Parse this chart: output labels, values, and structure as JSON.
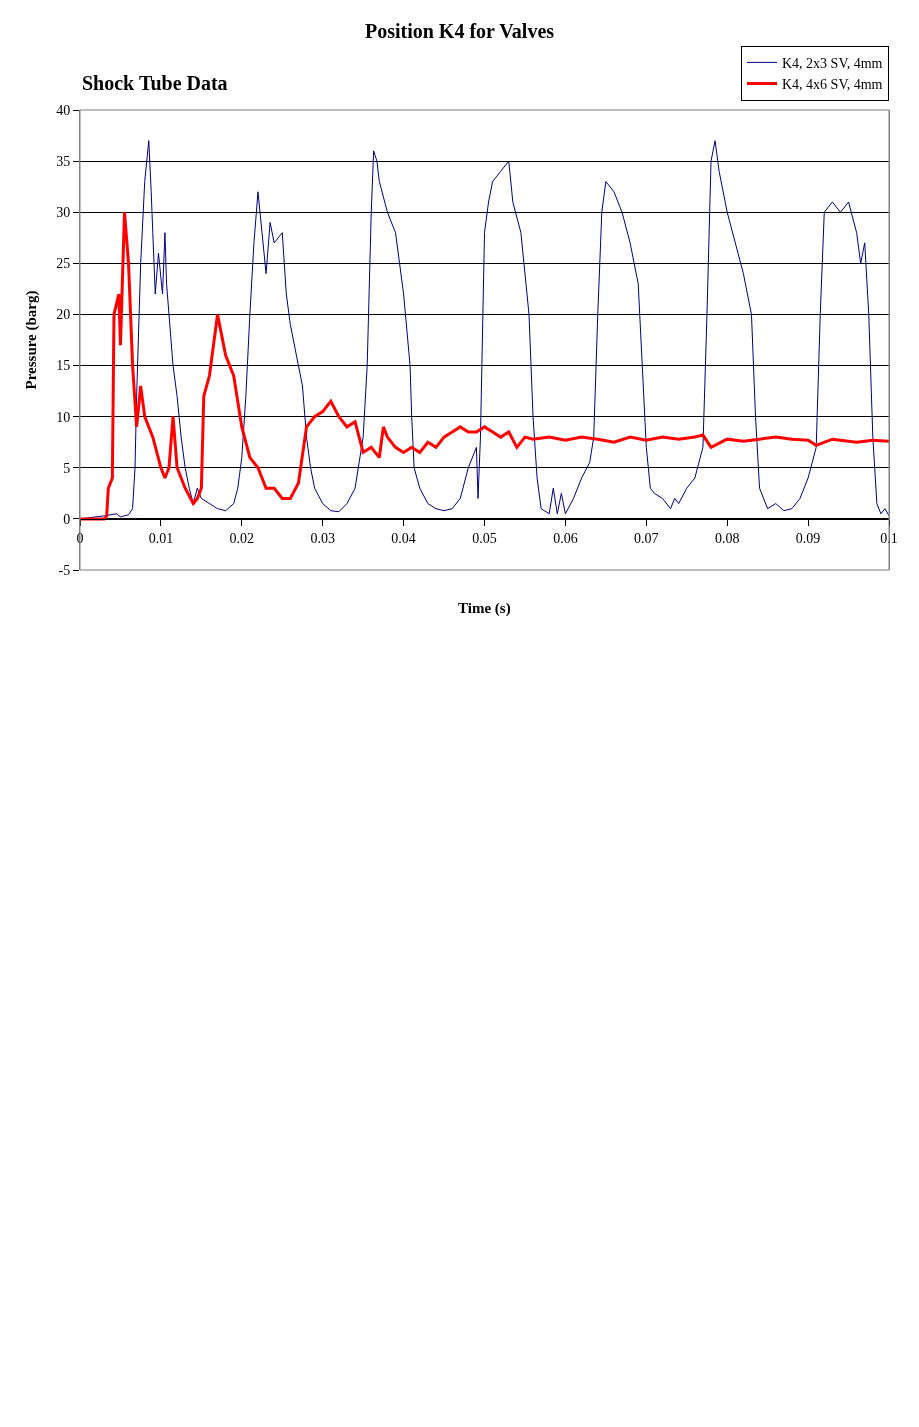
{
  "chart_data": {
    "type": "line",
    "title": "Position K4 for Valves",
    "subtitle": "Shock Tube Data",
    "xlabel": "Time (s)",
    "ylabel": "Pressure (barg)",
    "xlim": [
      0,
      0.1
    ],
    "xticks": [
      0,
      0.01,
      0.02,
      0.03,
      0.04,
      0.05,
      0.06,
      0.07,
      0.08,
      0.09,
      0.1
    ],
    "ylim": [
      -5,
      40
    ],
    "yticks": [
      -5,
      0,
      5,
      10,
      15,
      20,
      25,
      30,
      35,
      40
    ],
    "grid": "y",
    "legend": "top right",
    "series": [
      {
        "name": "K4, 2x3 SV, 4mm",
        "color": "#000080",
        "x": [
          0,
          0.003,
          0.0045,
          0.005,
          0.006,
          0.0065,
          0.0068,
          0.007,
          0.0075,
          0.008,
          0.0085,
          0.0088,
          0.009,
          0.0093,
          0.0097,
          0.0102,
          0.0105,
          0.0107,
          0.011,
          0.0115,
          0.012,
          0.0125,
          0.013,
          0.0135,
          0.014,
          0.0145,
          0.015,
          0.016,
          0.017,
          0.018,
          0.019,
          0.0195,
          0.02,
          0.0205,
          0.021,
          0.0215,
          0.022,
          0.0225,
          0.023,
          0.0235,
          0.024,
          0.025,
          0.0255,
          0.026,
          0.027,
          0.0275,
          0.028,
          0.0285,
          0.029,
          0.03,
          0.031,
          0.032,
          0.033,
          0.034,
          0.035,
          0.0355,
          0.036,
          0.0363,
          0.0367,
          0.037,
          0.038,
          0.039,
          0.04,
          0.0408,
          0.041,
          0.0413,
          0.042,
          0.043,
          0.044,
          0.045,
          0.046,
          0.047,
          0.048,
          0.049,
          0.0492,
          0.0495,
          0.0498,
          0.05,
          0.0505,
          0.051,
          0.052,
          0.053,
          0.0535,
          0.0545,
          0.0555,
          0.056,
          0.0565,
          0.057,
          0.058,
          0.0585,
          0.059,
          0.0595,
          0.06,
          0.061,
          0.062,
          0.063,
          0.0635,
          0.064,
          0.0645,
          0.065,
          0.066,
          0.067,
          0.068,
          0.069,
          0.0695,
          0.07,
          0.0705,
          0.071,
          0.072,
          0.073,
          0.0735,
          0.074,
          0.075,
          0.076,
          0.077,
          0.0775,
          0.078,
          0.0785,
          0.079,
          0.08,
          0.081,
          0.082,
          0.083,
          0.0835,
          0.084,
          0.085,
          0.086,
          0.087,
          0.088,
          0.089,
          0.09,
          0.091,
          0.0915,
          0.092,
          0.093,
          0.094,
          0.095,
          0.096,
          0.0965,
          0.097,
          0.0975,
          0.098,
          0.0985,
          0.099,
          0.0995,
          0.1
        ],
        "values": [
          0,
          0.3,
          0.5,
          0.2,
          0.4,
          1,
          5,
          12,
          25,
          33,
          37,
          32,
          28,
          22,
          26,
          22,
          28,
          23,
          20,
          15,
          12,
          8,
          5,
          3,
          1.5,
          3,
          2,
          1.5,
          1,
          0.8,
          1.5,
          3,
          6,
          12,
          20,
          27,
          32,
          28,
          24,
          29,
          27,
          28,
          22,
          19,
          15,
          13,
          8,
          5,
          3,
          1.5,
          0.8,
          0.7,
          1.5,
          3,
          8,
          15,
          30,
          36,
          35,
          33,
          30,
          28,
          22,
          15,
          10,
          5,
          3,
          1.5,
          1,
          0.8,
          1,
          2,
          5,
          7,
          2,
          8,
          20,
          28,
          31,
          33,
          34,
          35,
          31,
          28,
          20,
          10,
          4,
          1,
          0.5,
          3,
          0.5,
          2.5,
          0.5,
          2,
          4,
          5.5,
          8,
          20,
          30,
          33,
          32,
          30,
          27,
          23,
          15,
          7,
          3,
          2.5,
          2,
          1,
          2,
          1.5,
          3,
          4,
          7,
          20,
          35,
          37,
          34,
          30,
          27,
          24,
          20,
          10,
          3,
          1,
          1.5,
          0.8,
          1,
          2,
          4,
          7,
          20,
          30,
          31,
          30,
          31,
          28,
          25,
          27,
          20,
          8,
          1.5,
          0.5,
          1,
          0.3
        ]
      },
      {
        "name": "K4, 4x6 SV, 4mm",
        "color": "#ff0000",
        "x": [
          0,
          0.003,
          0.0033,
          0.0035,
          0.004,
          0.0042,
          0.0048,
          0.005,
          0.0055,
          0.006,
          0.0065,
          0.007,
          0.0075,
          0.008,
          0.009,
          0.01,
          0.0105,
          0.011,
          0.0115,
          0.012,
          0.013,
          0.014,
          0.0145,
          0.015,
          0.0153,
          0.016,
          0.0165,
          0.017,
          0.0175,
          0.018,
          0.019,
          0.02,
          0.021,
          0.022,
          0.023,
          0.024,
          0.025,
          0.026,
          0.027,
          0.028,
          0.029,
          0.03,
          0.031,
          0.032,
          0.033,
          0.034,
          0.035,
          0.036,
          0.037,
          0.0375,
          0.038,
          0.039,
          0.04,
          0.041,
          0.042,
          0.043,
          0.044,
          0.045,
          0.046,
          0.047,
          0.048,
          0.049,
          0.05,
          0.051,
          0.052,
          0.053,
          0.054,
          0.055,
          0.056,
          0.058,
          0.06,
          0.062,
          0.064,
          0.066,
          0.068,
          0.07,
          0.072,
          0.074,
          0.076,
          0.077,
          0.078,
          0.08,
          0.082,
          0.084,
          0.086,
          0.088,
          0.09,
          0.091,
          0.093,
          0.096,
          0.098,
          0.1
        ],
        "values": [
          0,
          0,
          0.3,
          3,
          4,
          20,
          22,
          17,
          30,
          25,
          15,
          9,
          13,
          10,
          8,
          5,
          4,
          5,
          10,
          5,
          3,
          1.5,
          2,
          3,
          12,
          14,
          17,
          20,
          18,
          16,
          14,
          9,
          6,
          5,
          3,
          3,
          2,
          2,
          3.5,
          9,
          10,
          10.5,
          11.5,
          10,
          9,
          9.5,
          6.5,
          7,
          6,
          9,
          8,
          7,
          6.5,
          7,
          6.5,
          7.5,
          7,
          8,
          8.5,
          9,
          8.5,
          8.5,
          9,
          8.5,
          8,
          8.5,
          7,
          8,
          7.8,
          8,
          7.7,
          8,
          7.8,
          7.5,
          8,
          7.7,
          8,
          7.8,
          8,
          8.2,
          7,
          7.8,
          7.6,
          7.8,
          8,
          7.8,
          7.7,
          7.2,
          7.8,
          7.5,
          7.7,
          7.6
        ]
      }
    ]
  }
}
